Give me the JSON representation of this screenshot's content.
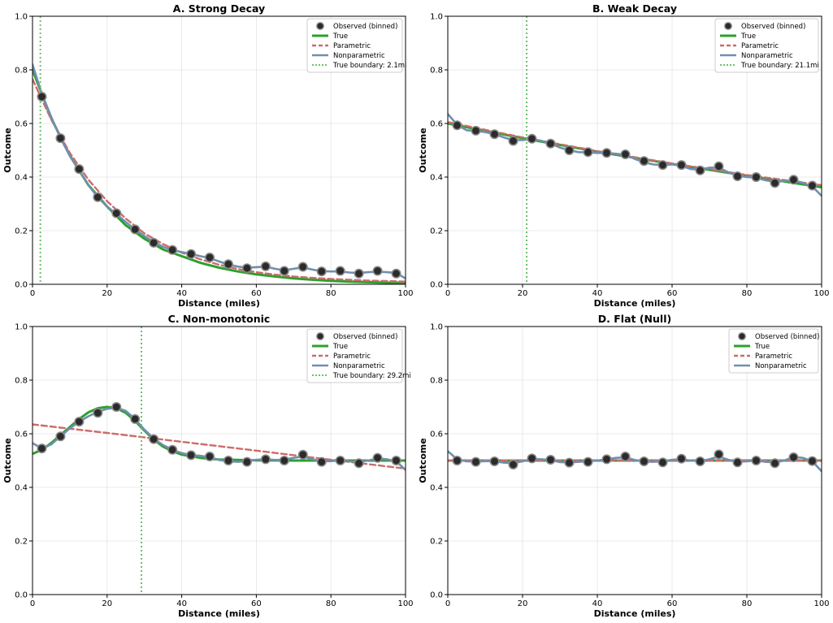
{
  "colors": {
    "true_line": "#2ca02c",
    "parametric": "#cd6b6b",
    "nonparametric": "#6f8fb0",
    "boundary": "#6dbf6d",
    "observed_fill": "#2b2b2b",
    "grid": "#e4e4e4"
  },
  "chart_data": [
    {
      "type": "line",
      "title": "A. Strong Decay",
      "xlabel": "Distance (miles)",
      "ylabel": "Outcome",
      "xlim": [
        0,
        100
      ],
      "ylim": [
        0,
        1
      ],
      "xticks": [
        0,
        20,
        40,
        60,
        80,
        100
      ],
      "yticks": [
        0.0,
        0.2,
        0.4,
        0.6,
        0.8,
        1.0
      ],
      "xtick_labels": [
        "0",
        "20",
        "40",
        "60",
        "80",
        "100"
      ],
      "ytick_labels": [
        "0.0",
        "0.2",
        "0.4",
        "0.6",
        "0.8",
        "1.0"
      ],
      "grid": true,
      "legend_position": "top-right",
      "legend": [
        "Observed (binned)",
        "True",
        "Parametric",
        "Nonparametric",
        "True boundary: 2.1mi"
      ],
      "boundary": 2.1,
      "x": [
        2.5,
        7.5,
        12.5,
        17.5,
        22.5,
        27.5,
        32.5,
        37.5,
        42.5,
        47.5,
        52.5,
        57.5,
        62.5,
        67.5,
        72.5,
        77.5,
        82.5,
        87.5,
        92.5,
        97.5
      ],
      "series": [
        {
          "name": "Observed (binned)",
          "kind": "points",
          "values": [
            0.7,
            0.545,
            0.43,
            0.325,
            0.265,
            0.205,
            0.155,
            0.128,
            0.113,
            0.1,
            0.075,
            0.06,
            0.067,
            0.05,
            0.065,
            0.048,
            0.05,
            0.04,
            0.05,
            0.04
          ]
        },
        {
          "name": "True",
          "kind": "line",
          "x": [
            0,
            5,
            10,
            15,
            20,
            25,
            30,
            35,
            40,
            45,
            50,
            55,
            60,
            65,
            70,
            75,
            80,
            85,
            90,
            95,
            100
          ],
          "values": [
            0.8,
            0.62,
            0.48,
            0.37,
            0.29,
            0.22,
            0.17,
            0.13,
            0.105,
            0.08,
            0.062,
            0.048,
            0.037,
            0.029,
            0.022,
            0.017,
            0.013,
            0.01,
            0.008,
            0.006,
            0.005
          ]
        },
        {
          "name": "Parametric",
          "kind": "line",
          "x": [
            0,
            5,
            10,
            15,
            20,
            25,
            30,
            35,
            40,
            45,
            50,
            55,
            60,
            65,
            70,
            75,
            80,
            85,
            90,
            95,
            100
          ],
          "values": [
            0.765,
            0.615,
            0.49,
            0.39,
            0.31,
            0.245,
            0.19,
            0.15,
            0.118,
            0.093,
            0.073,
            0.057,
            0.045,
            0.036,
            0.029,
            0.024,
            0.02,
            0.017,
            0.014,
            0.012,
            0.01
          ]
        },
        {
          "name": "Nonparametric",
          "kind": "line",
          "x": [
            0,
            2.5,
            5,
            7.5,
            10,
            12.5,
            15,
            17.5,
            20,
            22.5,
            25,
            27.5,
            30,
            32.5,
            35,
            37.5,
            40,
            42.5,
            45,
            47.5,
            50,
            52.5,
            55,
            57.5,
            60,
            62.5,
            65,
            67.5,
            70,
            72.5,
            75,
            77.5,
            80,
            82.5,
            85,
            87.5,
            90,
            92.5,
            95,
            97.5,
            100
          ],
          "values": [
            0.82,
            0.71,
            0.625,
            0.545,
            0.48,
            0.425,
            0.37,
            0.325,
            0.29,
            0.262,
            0.232,
            0.205,
            0.18,
            0.158,
            0.14,
            0.128,
            0.12,
            0.113,
            0.105,
            0.098,
            0.085,
            0.074,
            0.066,
            0.062,
            0.064,
            0.066,
            0.058,
            0.052,
            0.058,
            0.063,
            0.055,
            0.049,
            0.048,
            0.048,
            0.044,
            0.042,
            0.045,
            0.047,
            0.045,
            0.042,
            0.022
          ]
        }
      ]
    },
    {
      "type": "line",
      "title": "B. Weak Decay",
      "xlabel": "Distance (miles)",
      "ylabel": "Outcome",
      "xlim": [
        0,
        100
      ],
      "ylim": [
        0,
        1
      ],
      "xticks": [
        0,
        20,
        40,
        60,
        80,
        100
      ],
      "yticks": [
        0.0,
        0.2,
        0.4,
        0.6,
        0.8,
        1.0
      ],
      "xtick_labels": [
        "0",
        "20",
        "40",
        "60",
        "80",
        "100"
      ],
      "ytick_labels": [
        "0.0",
        "0.2",
        "0.4",
        "0.6",
        "0.8",
        "1.0"
      ],
      "grid": true,
      "legend_position": "top-right",
      "legend": [
        "Observed (binned)",
        "True",
        "Parametric",
        "Nonparametric",
        "True boundary: 21.1mi"
      ],
      "boundary": 21.1,
      "x": [
        2.5,
        7.5,
        12.5,
        17.5,
        22.5,
        27.5,
        32.5,
        37.5,
        42.5,
        47.5,
        52.5,
        57.5,
        62.5,
        67.5,
        72.5,
        77.5,
        82.5,
        87.5,
        92.5,
        97.5
      ],
      "series": [
        {
          "name": "Observed (binned)",
          "kind": "points",
          "values": [
            0.593,
            0.573,
            0.56,
            0.535,
            0.543,
            0.525,
            0.5,
            0.493,
            0.49,
            0.485,
            0.46,
            0.445,
            0.445,
            0.425,
            0.44,
            0.403,
            0.4,
            0.378,
            0.39,
            0.368
          ]
        },
        {
          "name": "True",
          "kind": "line",
          "x": [
            0,
            20,
            40,
            60,
            80,
            100
          ],
          "values": [
            0.6,
            0.545,
            0.495,
            0.449,
            0.405,
            0.362
          ]
        },
        {
          "name": "Parametric",
          "kind": "line",
          "x": [
            0,
            20,
            40,
            60,
            80,
            100
          ],
          "values": [
            0.605,
            0.548,
            0.497,
            0.451,
            0.408,
            0.37
          ]
        },
        {
          "name": "Nonparametric",
          "kind": "line",
          "x": [
            0,
            2.5,
            5,
            7.5,
            10,
            12.5,
            15,
            17.5,
            20,
            22.5,
            25,
            27.5,
            30,
            32.5,
            35,
            37.5,
            40,
            42.5,
            45,
            47.5,
            50,
            52.5,
            55,
            57.5,
            60,
            62.5,
            65,
            67.5,
            70,
            72.5,
            75,
            77.5,
            80,
            82.5,
            85,
            87.5,
            90,
            92.5,
            95,
            97.5,
            100
          ],
          "values": [
            0.635,
            0.595,
            0.575,
            0.572,
            0.568,
            0.56,
            0.548,
            0.538,
            0.538,
            0.542,
            0.535,
            0.525,
            0.51,
            0.5,
            0.493,
            0.492,
            0.49,
            0.49,
            0.487,
            0.483,
            0.468,
            0.455,
            0.447,
            0.445,
            0.447,
            0.442,
            0.43,
            0.428,
            0.435,
            0.435,
            0.418,
            0.405,
            0.4,
            0.398,
            0.388,
            0.382,
            0.385,
            0.388,
            0.378,
            0.365,
            0.33
          ]
        }
      ]
    },
    {
      "type": "line",
      "title": "C. Non-monotonic",
      "xlabel": "Distance (miles)",
      "ylabel": "Outcome",
      "xlim": [
        0,
        100
      ],
      "ylim": [
        0,
        1
      ],
      "xticks": [
        0,
        20,
        40,
        60,
        80,
        100
      ],
      "yticks": [
        0.0,
        0.2,
        0.4,
        0.6,
        0.8,
        1.0
      ],
      "xtick_labels": [
        "0",
        "20",
        "40",
        "60",
        "80",
        "100"
      ],
      "ytick_labels": [
        "0.0",
        "0.2",
        "0.4",
        "0.6",
        "0.8",
        "1.0"
      ],
      "grid": true,
      "legend_position": "top-right",
      "legend": [
        "Observed (binned)",
        "True",
        "Parametric",
        "Nonparametric",
        "True boundary: 29.2mi"
      ],
      "boundary": 29.2,
      "x": [
        2.5,
        7.5,
        12.5,
        17.5,
        22.5,
        27.5,
        32.5,
        37.5,
        42.5,
        47.5,
        52.5,
        57.5,
        62.5,
        67.5,
        72.5,
        77.5,
        82.5,
        87.5,
        92.5,
        97.5
      ],
      "series": [
        {
          "name": "Observed (binned)",
          "kind": "points",
          "values": [
            0.545,
            0.59,
            0.645,
            0.678,
            0.7,
            0.655,
            0.58,
            0.54,
            0.52,
            0.515,
            0.5,
            0.495,
            0.505,
            0.5,
            0.522,
            0.495,
            0.5,
            0.49,
            0.51,
            0.5
          ]
        },
        {
          "name": "True",
          "kind": "line",
          "x": [
            0,
            2.5,
            5,
            7.5,
            10,
            12.5,
            15,
            17.5,
            20,
            22.5,
            25,
            27.5,
            30,
            32.5,
            35,
            37.5,
            40,
            45,
            50,
            55,
            60,
            70,
            80,
            90,
            100
          ],
          "values": [
            0.525,
            0.54,
            0.565,
            0.595,
            0.625,
            0.655,
            0.68,
            0.695,
            0.7,
            0.695,
            0.678,
            0.648,
            0.612,
            0.578,
            0.552,
            0.535,
            0.522,
            0.51,
            0.504,
            0.502,
            0.501,
            0.5,
            0.5,
            0.5,
            0.5
          ]
        },
        {
          "name": "Parametric",
          "kind": "line",
          "x": [
            0,
            20,
            40,
            60,
            80,
            100
          ],
          "values": [
            0.635,
            0.603,
            0.57,
            0.537,
            0.503,
            0.47
          ]
        },
        {
          "name": "Nonparametric",
          "kind": "line",
          "x": [
            0,
            2.5,
            5,
            7.5,
            10,
            12.5,
            15,
            17.5,
            20,
            22.5,
            25,
            27.5,
            30,
            32.5,
            35,
            37.5,
            40,
            42.5,
            45,
            47.5,
            50,
            52.5,
            55,
            57.5,
            60,
            62.5,
            65,
            67.5,
            70,
            72.5,
            75,
            77.5,
            80,
            82.5,
            85,
            87.5,
            90,
            92.5,
            95,
            97.5,
            100
          ],
          "values": [
            0.565,
            0.545,
            0.56,
            0.59,
            0.62,
            0.645,
            0.665,
            0.682,
            0.693,
            0.697,
            0.685,
            0.655,
            0.615,
            0.582,
            0.558,
            0.54,
            0.528,
            0.52,
            0.518,
            0.512,
            0.502,
            0.497,
            0.495,
            0.497,
            0.503,
            0.505,
            0.502,
            0.503,
            0.51,
            0.515,
            0.505,
            0.497,
            0.498,
            0.5,
            0.497,
            0.495,
            0.5,
            0.508,
            0.505,
            0.497,
            0.465
          ]
        }
      ]
    },
    {
      "type": "line",
      "title": "D. Flat (Null)",
      "xlabel": "Distance (miles)",
      "ylabel": "Outcome",
      "xlim": [
        0,
        100
      ],
      "ylim": [
        0,
        1
      ],
      "xticks": [
        0,
        20,
        40,
        60,
        80,
        100
      ],
      "yticks": [
        0.0,
        0.2,
        0.4,
        0.6,
        0.8,
        1.0
      ],
      "xtick_labels": [
        "0",
        "20",
        "40",
        "60",
        "80",
        "100"
      ],
      "ytick_labels": [
        "0.0",
        "0.2",
        "0.4",
        "0.6",
        "0.8",
        "1.0"
      ],
      "grid": true,
      "legend_position": "top-right",
      "legend": [
        "Observed (binned)",
        "True",
        "Parametric",
        "Nonparametric"
      ],
      "boundary": null,
      "x": [
        2.5,
        7.5,
        12.5,
        17.5,
        22.5,
        27.5,
        32.5,
        37.5,
        42.5,
        47.5,
        52.5,
        57.5,
        62.5,
        67.5,
        72.5,
        77.5,
        82.5,
        87.5,
        92.5,
        97.5
      ],
      "series": [
        {
          "name": "Observed (binned)",
          "kind": "points",
          "values": [
            0.5,
            0.495,
            0.497,
            0.485,
            0.508,
            0.503,
            0.492,
            0.495,
            0.505,
            0.515,
            0.497,
            0.493,
            0.507,
            0.497,
            0.523,
            0.493,
            0.5,
            0.49,
            0.512,
            0.498
          ]
        },
        {
          "name": "True",
          "kind": "line",
          "x": [
            0,
            100
          ],
          "values": [
            0.5,
            0.5
          ]
        },
        {
          "name": "Parametric",
          "kind": "line",
          "x": [
            0,
            100
          ],
          "values": [
            0.501,
            0.499
          ]
        },
        {
          "name": "Nonparametric",
          "kind": "line",
          "x": [
            0,
            2.5,
            5,
            7.5,
            10,
            12.5,
            15,
            17.5,
            20,
            22.5,
            25,
            27.5,
            30,
            32.5,
            35,
            37.5,
            40,
            42.5,
            45,
            47.5,
            50,
            52.5,
            55,
            57.5,
            60,
            62.5,
            65,
            67.5,
            70,
            72.5,
            75,
            77.5,
            80,
            82.5,
            85,
            87.5,
            90,
            92.5,
            95,
            97.5,
            100
          ],
          "values": [
            0.535,
            0.505,
            0.497,
            0.496,
            0.498,
            0.497,
            0.492,
            0.49,
            0.497,
            0.506,
            0.505,
            0.502,
            0.494,
            0.493,
            0.495,
            0.497,
            0.5,
            0.505,
            0.51,
            0.512,
            0.502,
            0.496,
            0.495,
            0.497,
            0.503,
            0.505,
            0.5,
            0.498,
            0.505,
            0.515,
            0.503,
            0.495,
            0.497,
            0.5,
            0.495,
            0.493,
            0.5,
            0.513,
            0.51,
            0.498,
            0.46
          ]
        }
      ]
    }
  ]
}
